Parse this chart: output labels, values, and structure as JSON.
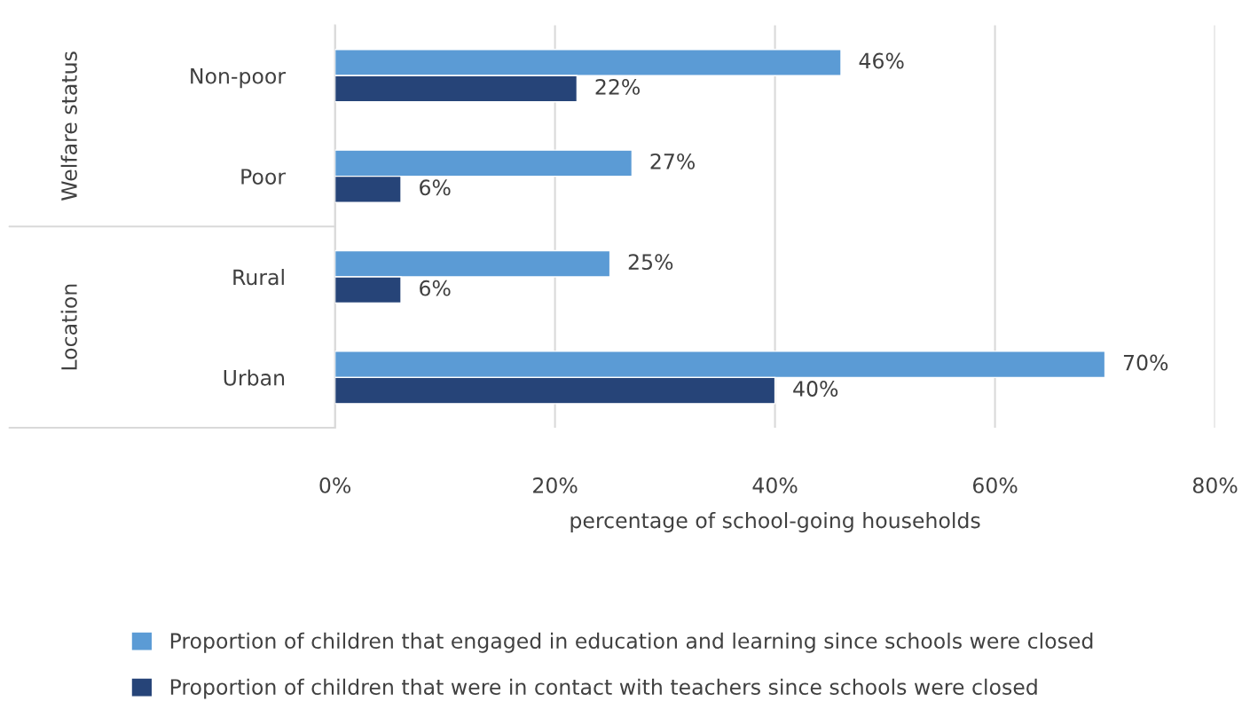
{
  "chart_data": {
    "type": "bar",
    "orientation": "horizontal",
    "categories": [
      "Non-poor",
      "Poor",
      "Rural",
      "Urban"
    ],
    "series": [
      {
        "name": "Proportion of children that engaged in education and learning since schools were closed",
        "color": "#5b9bd5",
        "values": [
          46,
          27,
          25,
          70
        ],
        "value_labels": [
          "46%",
          "27%",
          "25%",
          "70%"
        ]
      },
      {
        "name": "Proportion of children that were in contact with teachers since schools were closed",
        "color": "#264478",
        "values": [
          22,
          6,
          6,
          40
        ],
        "value_labels": [
          "22%",
          "6%",
          "6%",
          "40%"
        ]
      }
    ],
    "xlabel": "percentage of school-going households",
    "xlim": [
      0,
      80
    ],
    "xticks": [
      {
        "value": 0,
        "label": "0%"
      },
      {
        "value": 20,
        "label": "20%"
      },
      {
        "value": 40,
        "label": "40%"
      },
      {
        "value": 60,
        "label": "60%"
      },
      {
        "value": 80,
        "label": "80%"
      }
    ],
    "annotations": [
      "Welfare status",
      "Location"
    ],
    "grid": "x",
    "legend": "bottom"
  }
}
